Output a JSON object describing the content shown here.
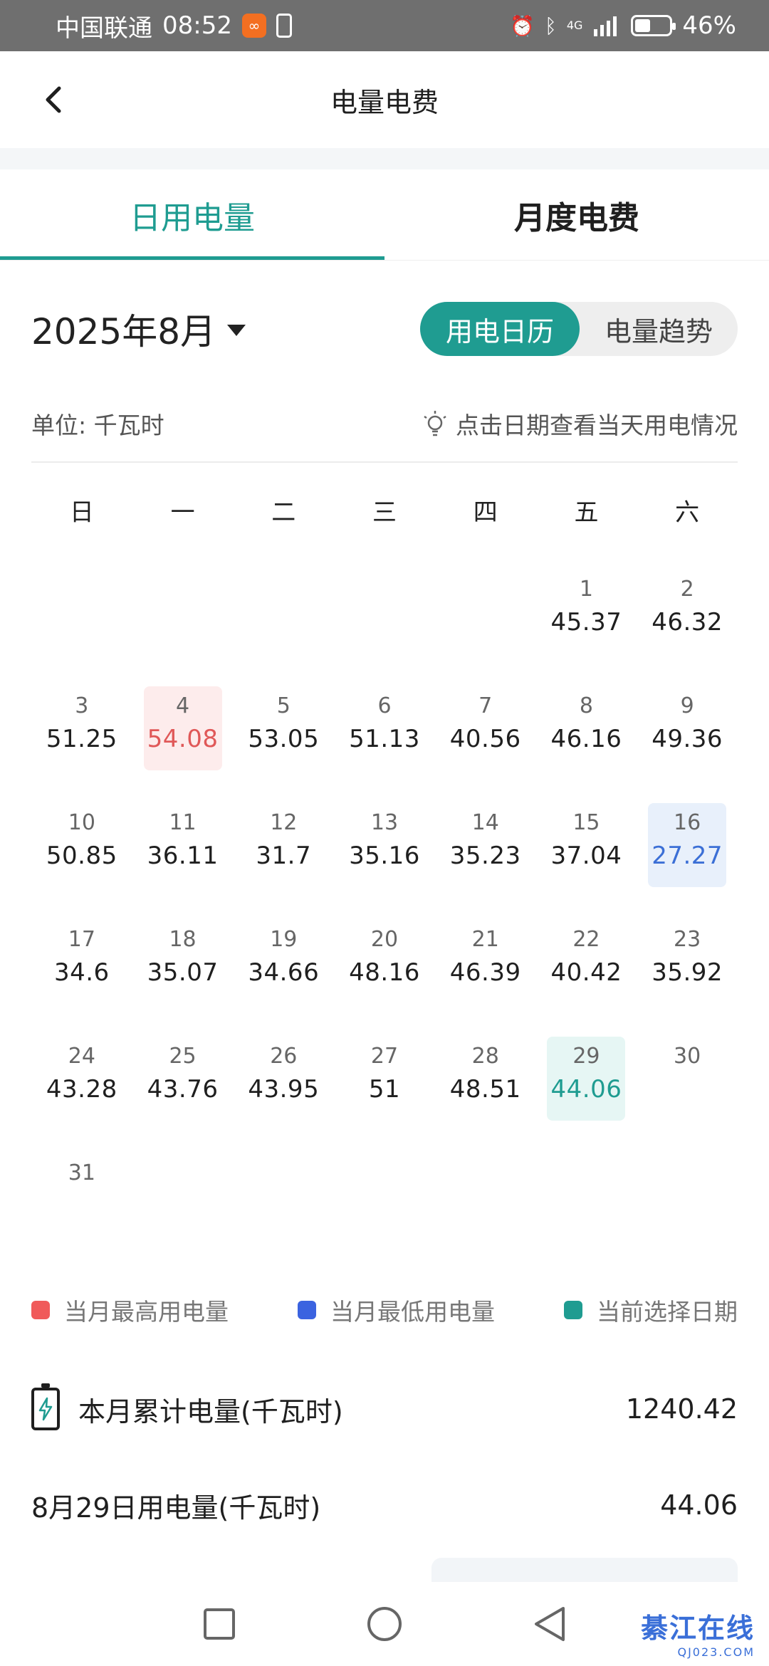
{
  "status_bar": {
    "carrier": "中国联通",
    "time": "08:52",
    "network": "4G",
    "battery": "46%",
    "battery_level": 0.46,
    "icons": [
      "app-icon",
      "battery-saver-icon",
      "alarm-icon",
      "bluetooth-icon",
      "signal-icon",
      "battery-icon"
    ]
  },
  "header": {
    "back_icon": "chevron-left-icon",
    "title": "电量电费"
  },
  "tabs": [
    {
      "label": "日用电量",
      "active": true
    },
    {
      "label": "月度电费",
      "active": false
    }
  ],
  "month_selector": {
    "label": "2025年8月",
    "icon": "caret-down-icon"
  },
  "view_toggle": [
    {
      "label": "用电日历",
      "active": true
    },
    {
      "label": "电量趋势",
      "active": false
    }
  ],
  "unit_label": "单位:  千瓦时",
  "tip": {
    "icon": "lightbulb-icon",
    "text": "点击日期查看当天用电情况"
  },
  "weekdays": [
    "日",
    "一",
    "二",
    "三",
    "四",
    "五",
    "六"
  ],
  "calendar": {
    "leading_blanks": 5,
    "days": [
      {
        "day": "1",
        "value": "45.37"
      },
      {
        "day": "2",
        "value": "46.32"
      },
      {
        "day": "3",
        "value": "51.25"
      },
      {
        "day": "4",
        "value": "54.08",
        "mark": "hi"
      },
      {
        "day": "5",
        "value": "53.05"
      },
      {
        "day": "6",
        "value": "51.13"
      },
      {
        "day": "7",
        "value": "40.56"
      },
      {
        "day": "8",
        "value": "46.16"
      },
      {
        "day": "9",
        "value": "49.36"
      },
      {
        "day": "10",
        "value": "50.85"
      },
      {
        "day": "11",
        "value": "36.11"
      },
      {
        "day": "12",
        "value": "31.7"
      },
      {
        "day": "13",
        "value": "35.16"
      },
      {
        "day": "14",
        "value": "35.23"
      },
      {
        "day": "15",
        "value": "37.04"
      },
      {
        "day": "16",
        "value": "27.27",
        "mark": "lo"
      },
      {
        "day": "17",
        "value": "34.6"
      },
      {
        "day": "18",
        "value": "35.07"
      },
      {
        "day": "19",
        "value": "34.66"
      },
      {
        "day": "20",
        "value": "48.16"
      },
      {
        "day": "21",
        "value": "46.39"
      },
      {
        "day": "22",
        "value": "40.42"
      },
      {
        "day": "23",
        "value": "35.92"
      },
      {
        "day": "24",
        "value": "43.28"
      },
      {
        "day": "25",
        "value": "43.76"
      },
      {
        "day": "26",
        "value": "43.95"
      },
      {
        "day": "27",
        "value": "51"
      },
      {
        "day": "28",
        "value": "48.51"
      },
      {
        "day": "29",
        "value": "44.06",
        "mark": "sel"
      },
      {
        "day": "30",
        "value": ""
      },
      {
        "day": "31",
        "value": ""
      }
    ]
  },
  "legend": [
    {
      "label": "当月最高用电量",
      "color": "#f05a5a"
    },
    {
      "label": "当月最低用电量",
      "color": "#3b63e0"
    },
    {
      "label": "当前选择日期",
      "color": "#1f9c91"
    }
  ],
  "summary": {
    "monthly_label": "本月累计电量(千瓦时)",
    "monthly_value": "1240.42",
    "monthly_icon": "battery-charging-icon",
    "daily_label": "8月29日用电量(千瓦时)",
    "daily_value": "44.06"
  },
  "system_nav": {
    "icons": [
      "recent-apps-icon",
      "home-icon",
      "back-icon"
    ]
  },
  "watermark": {
    "text": "綦江在线",
    "sub": "QJ023.COM"
  }
}
